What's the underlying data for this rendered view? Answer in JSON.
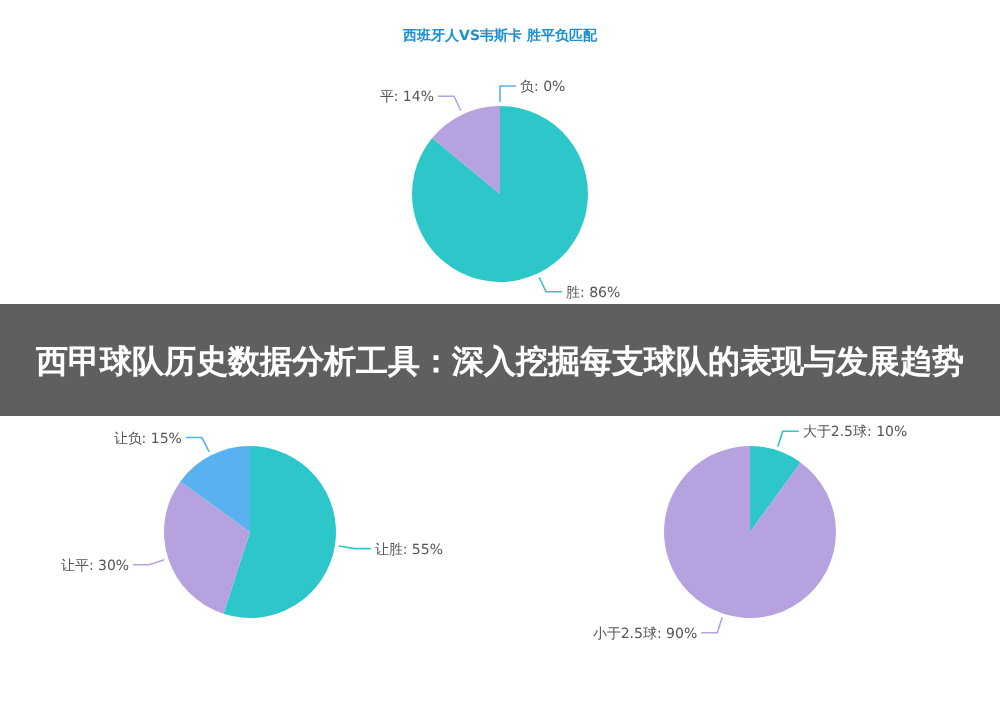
{
  "chart_data": [
    {
      "type": "pie",
      "title": "西班牙人VS韦斯卡 胜平负匹配",
      "categories": [
        "胜",
        "平",
        "负"
      ],
      "values": [
        86,
        14,
        0
      ],
      "value_labels": [
        "86%",
        "14%",
        "0%"
      ],
      "colors": [
        "#2ec7c9",
        "#b6a2de",
        "#5ab1ef"
      ]
    },
    {
      "type": "other",
      "title": "西甲球队历史数据分析工具：深入挖掘每支球队的表现与发展趋势"
    },
    {
      "type": "pie",
      "categories": [
        "让胜",
        "让平",
        "让负"
      ],
      "values": [
        55,
        30,
        15
      ],
      "value_labels": [
        "55%",
        "30%",
        "15%"
      ],
      "colors": [
        "#2ec7c9",
        "#b6a2de",
        "#5ab1ef"
      ]
    },
    {
      "type": "pie",
      "categories": [
        "大于2.5球",
        "小于2.5球"
      ],
      "values": [
        10,
        90
      ],
      "value_labels": [
        "10%",
        "90%"
      ],
      "colors": [
        "#2ec7c9",
        "#b6a2de"
      ]
    }
  ]
}
